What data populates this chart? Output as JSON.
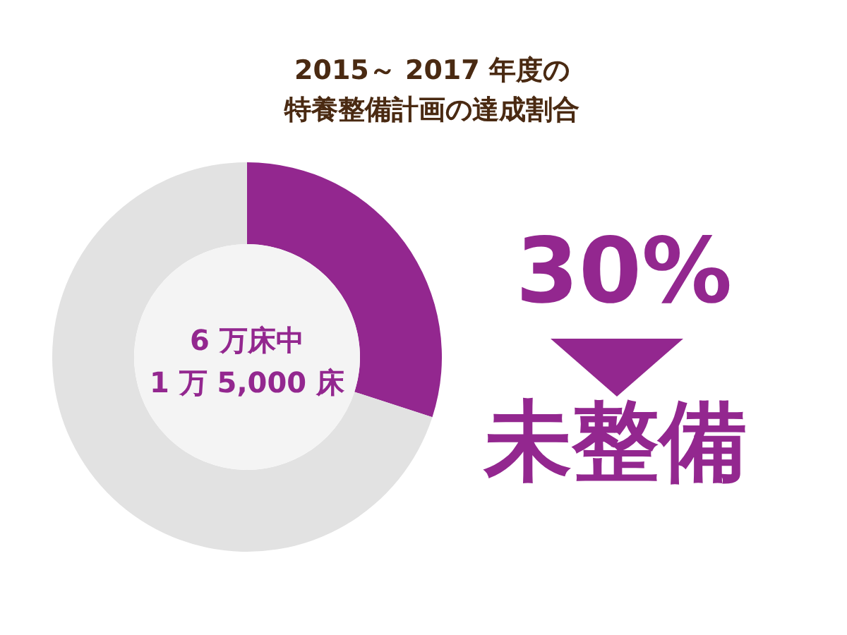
{
  "chart_data": {
    "type": "donut",
    "title": "2015～ 2017 年度の",
    "subtitle": "特養整備計画の達成割合",
    "categories": [
      null,
      null
    ],
    "values": [
      30,
      70
    ],
    "colors": [
      "#93278f",
      "#e2e2e2"
    ],
    "annotations": [
      "6 万床中",
      "1 万 5,000 床",
      "30%",
      "未整備"
    ]
  }
}
